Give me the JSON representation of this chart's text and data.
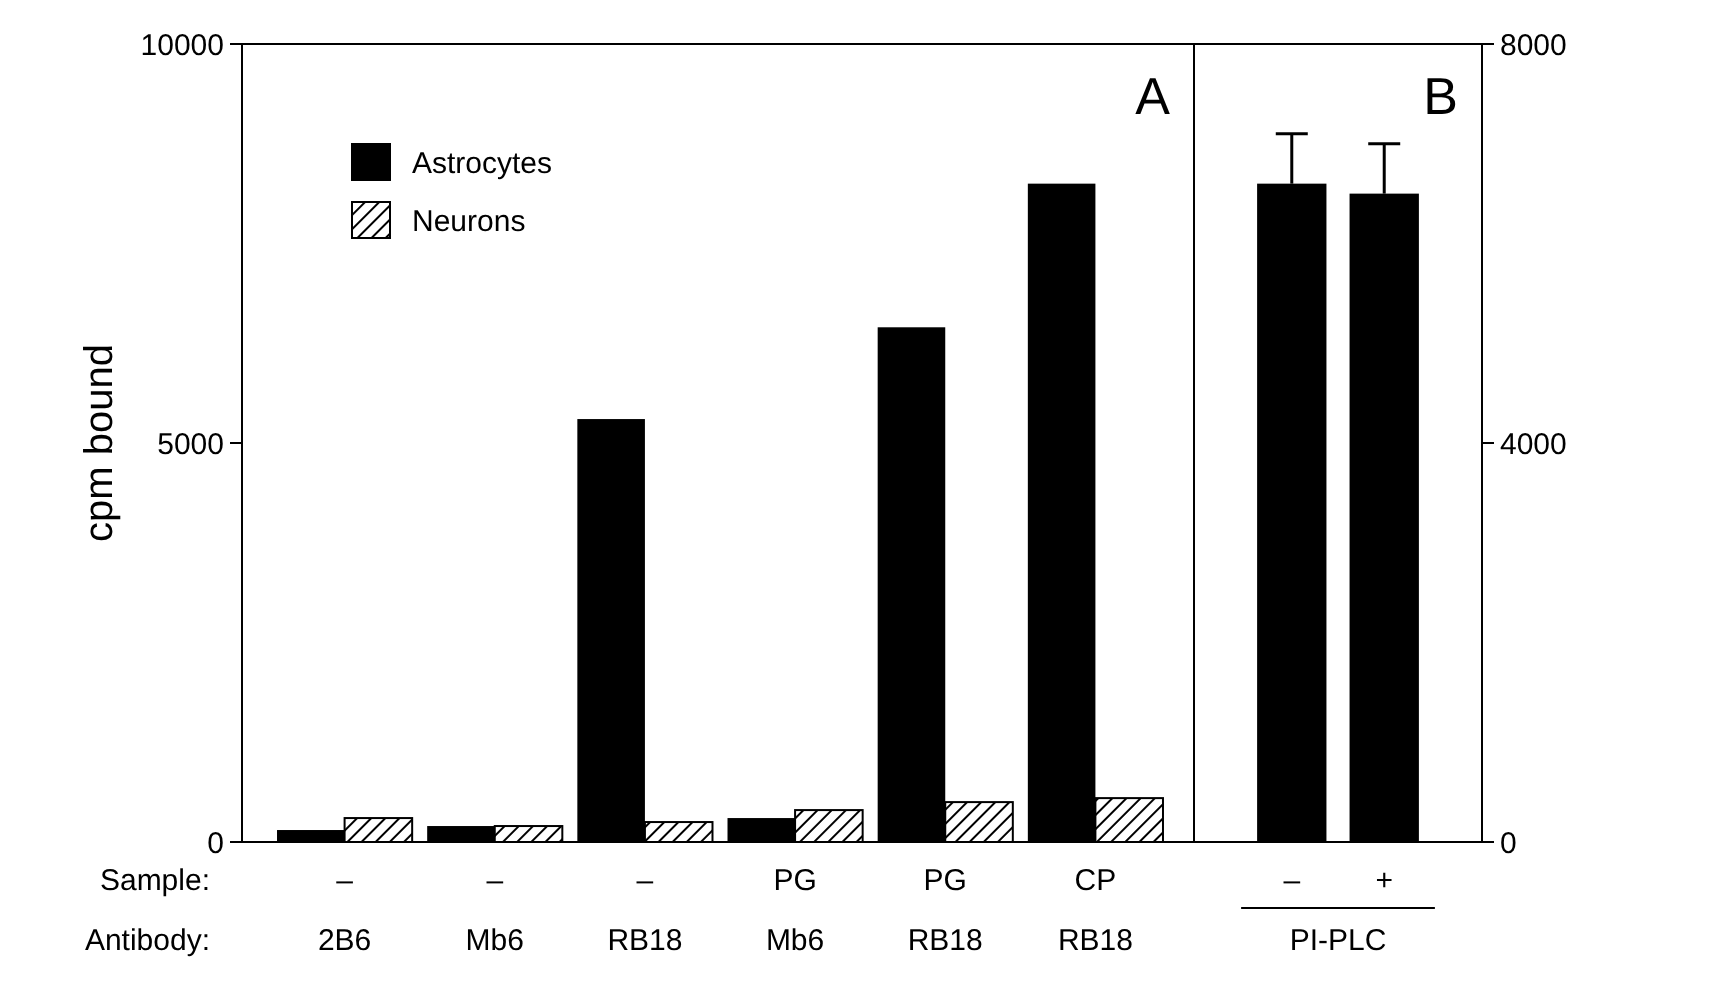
{
  "chart_data": [
    {
      "type": "bar",
      "title": "A",
      "ylabel": "cpm bound",
      "categories": [
        "–\n2B6",
        "–\nMb6",
        "–\nRB18",
        "PG\nMb6",
        "PG\nRB18",
        "CP\nRB18"
      ],
      "series": [
        {
          "name": "Astrocytes",
          "color": "#000000",
          "values": [
            150,
            200,
            5300,
            300,
            6450,
            8250
          ]
        },
        {
          "name": "Neurons",
          "color": "#000000",
          "values": [
            300,
            200,
            250,
            400,
            500,
            550
          ]
        }
      ],
      "ylim": [
        0,
        10000
      ],
      "yticks": [
        0,
        5000,
        10000
      ],
      "legend": "top left",
      "annotations": [
        "Sample:",
        "Antibody:"
      ]
    },
    {
      "type": "bar",
      "title": "B",
      "xlabel": "PI-PLC",
      "categories": [
        "–",
        "+"
      ],
      "values": [
        6600,
        6500
      ],
      "errors": [
        500,
        500
      ],
      "color": "#000000",
      "ylim": [
        0,
        8000
      ],
      "yticks": [
        0,
        4000,
        8000
      ]
    }
  ]
}
